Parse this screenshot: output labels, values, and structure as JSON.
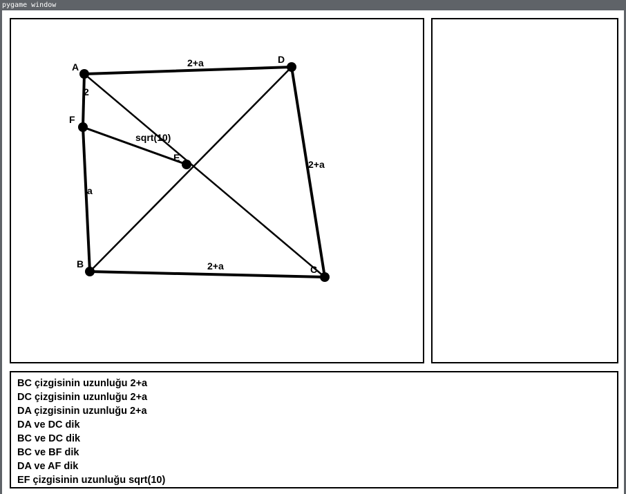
{
  "window": {
    "title": "pygame window"
  },
  "figure": {
    "points": [
      {
        "name": "A",
        "label": "A"
      },
      {
        "name": "D",
        "label": "D"
      },
      {
        "name": "F",
        "label": "F"
      },
      {
        "name": "E",
        "label": "E"
      },
      {
        "name": "B",
        "label": "B"
      },
      {
        "name": "C",
        "label": "C"
      }
    ],
    "segments": [
      {
        "from": "A",
        "to": "D",
        "weight": "thick"
      },
      {
        "from": "D",
        "to": "C",
        "weight": "thick"
      },
      {
        "from": "B",
        "to": "C",
        "weight": "thick"
      },
      {
        "from": "A",
        "to": "F",
        "weight": "thick"
      },
      {
        "from": "F",
        "to": "B",
        "weight": "thick"
      },
      {
        "from": "F",
        "to": "E",
        "weight": "medium"
      },
      {
        "from": "A",
        "to": "C",
        "weight": "thin"
      },
      {
        "from": "B",
        "to": "D",
        "weight": "thin"
      }
    ],
    "length_labels": [
      {
        "segment": "A-D",
        "text": "2+a"
      },
      {
        "segment": "A-F",
        "text": "2"
      },
      {
        "segment": "F-E",
        "text": "sqrt(10)"
      },
      {
        "segment": "D-C",
        "text": "2+a"
      },
      {
        "segment": "F-B",
        "text": "a"
      },
      {
        "segment": "B-C",
        "text": "2+a"
      }
    ],
    "line_color": "#000000"
  },
  "info": {
    "lines": [
      "BC çizgisinin uzunluğu 2+a",
      "DC çizgisinin uzunluğu 2+a",
      "DA çizgisinin uzunluğu 2+a",
      "DA ve DC dik",
      "BC ve DC dik",
      "BC ve BF dik",
      "DA ve AF dik",
      "EF çizgisinin uzunluğu sqrt(10)"
    ]
  }
}
